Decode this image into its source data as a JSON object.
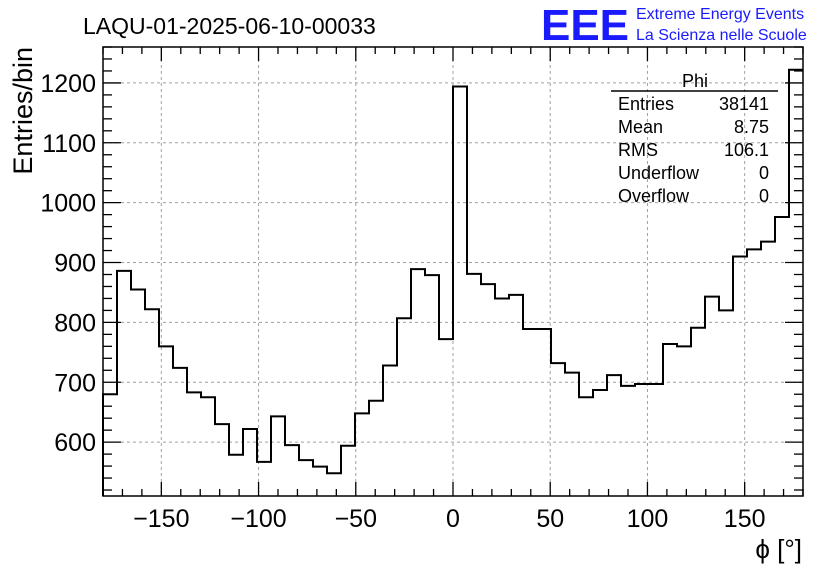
{
  "chart_data": {
    "type": "bar",
    "title": "LAQU-01-2025-06-10-00033",
    "xlabel": "ϕ [°]",
    "ylabel": "Entries/bin",
    "xlim": [
      -180,
      180
    ],
    "ylim": [
      510,
      1260
    ],
    "grid": true,
    "x_ticks": [
      -150,
      -100,
      -50,
      0,
      50,
      100,
      150
    ],
    "y_ticks": [
      600,
      700,
      800,
      900,
      1000,
      1100,
      1200
    ],
    "x_tick_labels": [
      "−150",
      "−100",
      "−50",
      "0",
      "50",
      "100",
      "150"
    ],
    "y_tick_labels": [
      "600",
      "700",
      "800",
      "900",
      "1000",
      "1100",
      "1200"
    ],
    "bin_width": 7.2,
    "values": [
      680,
      886,
      855,
      822,
      760,
      724,
      683,
      675,
      630,
      579,
      622,
      567,
      643,
      595,
      570,
      559,
      548,
      594,
      648,
      669,
      728,
      807,
      889,
      879,
      772,
      1194,
      881,
      864,
      840,
      846,
      789,
      789,
      732,
      716,
      675,
      687,
      712,
      694,
      697,
      697,
      764,
      760,
      791,
      843,
      820,
      910,
      922,
      935,
      976,
      1222
    ]
  },
  "stats": {
    "name": "Phi",
    "rows": [
      {
        "label": "Entries",
        "value": "38141"
      },
      {
        "label": "Mean",
        "value": "8.75"
      },
      {
        "label": "RMS",
        "value": "106.1"
      },
      {
        "label": "Underflow",
        "value": "0"
      },
      {
        "label": "Overflow",
        "value": "0"
      }
    ]
  },
  "logo": {
    "mark": "EEE",
    "line1": "Extreme Energy Events",
    "line2": "La Scienza nelle Scuole",
    "color": "#1a1aff"
  }
}
